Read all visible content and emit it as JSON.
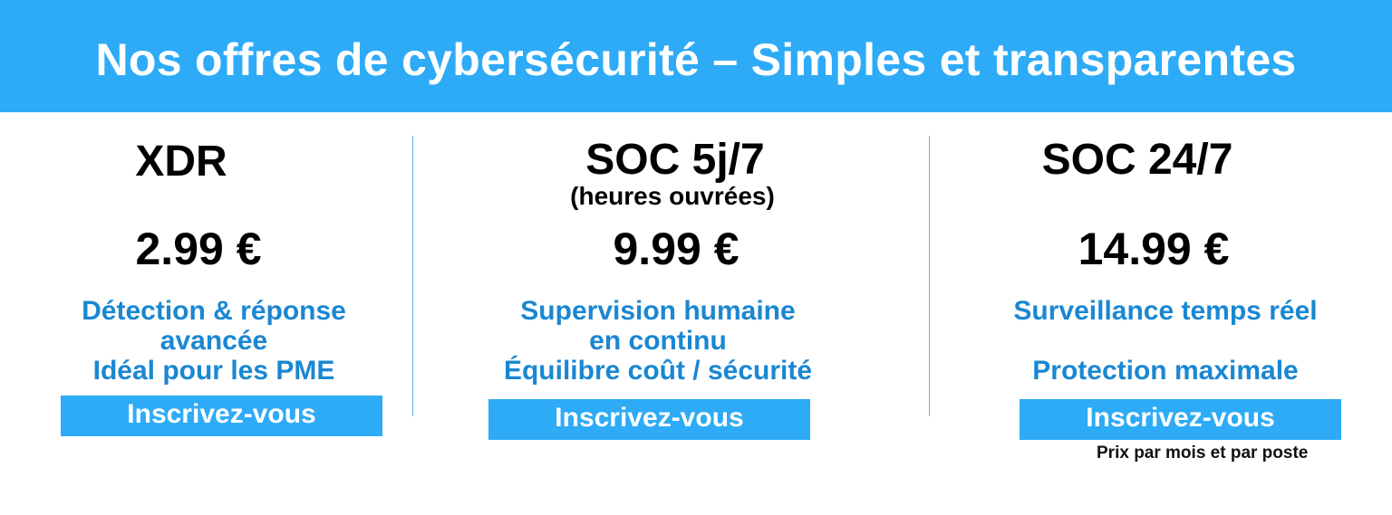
{
  "header": {
    "title": "Nos offres de cybersécurité – Simples et transparentes"
  },
  "colors": {
    "brand": "#2eabf7",
    "accent_text": "#1a87d2"
  },
  "offers": [
    {
      "name": "XDR",
      "price": "2.99 €",
      "lines": [
        "Détection & réponse",
        "avancée",
        "Idéal pour les PME"
      ],
      "button": "Inscrivez-vous"
    },
    {
      "name": "SOC 5j/7",
      "subtitle": "(heures ouvrées)",
      "price": "9.99 €",
      "lines": [
        "Supervision humaine",
        "en continu",
        "Équilibre coût / sécurité"
      ],
      "button": "Inscrivez-vous"
    },
    {
      "name": "SOC 24/7",
      "price": "14.99 €",
      "lines": [
        "Surveillance temps réel",
        "Protection maximale"
      ],
      "button": "Inscrivez-vous"
    }
  ],
  "footnote": "Prix par mois et par poste"
}
